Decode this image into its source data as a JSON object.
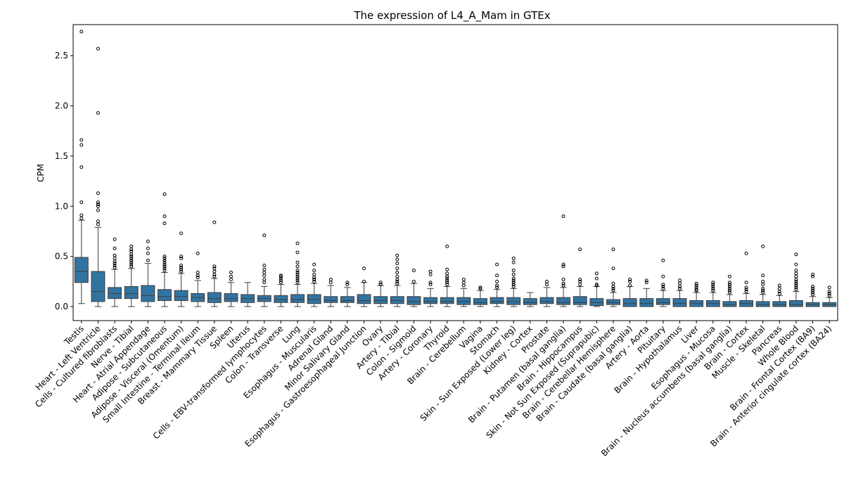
{
  "chart_data": {
    "type": "box",
    "title": "The expression of L4_A_Mam in GTEx",
    "xlabel": "",
    "ylabel": "CPM",
    "ylim": [
      -0.14,
      2.81
    ],
    "yticks": [
      0.0,
      0.5,
      1.0,
      1.5,
      2.0,
      2.5
    ],
    "ytick_labels": [
      "0.0",
      "0.5",
      "1.0",
      "1.5",
      "2.0",
      "2.5"
    ],
    "grid": false,
    "box_color": "#3274a1",
    "categories": [
      "Testis",
      "Heart - Left Ventricle",
      "Cells - Cultured fibroblasts",
      "Nerve - Tibial",
      "Heart - Atrial Appendage",
      "Adipose - Subcutaneous",
      "Adipose - Visceral (Omentum)",
      "Small Intestine - Terminal Ileum",
      "Breast - Mammary Tissue",
      "Spleen",
      "Uterus",
      "Cells - EBV-transformed lymphocytes",
      "Colon - Transverse",
      "Lung",
      "Esophagus - Muscularis",
      "Adrenal Gland",
      "Minor Salivary Gland",
      "Esophagus - Gastroesophageal Junction",
      "Ovary",
      "Artery - Tibial",
      "Colon - Sigmoid",
      "Artery - Coronary",
      "Thyroid",
      "Brain - Cerebellum",
      "Vagina",
      "Stomach",
      "Skin - Sun Exposed (Lower leg)",
      "Kidney - Cortex",
      "Prostate",
      "Brain - Putamen (basal ganglia)",
      "Brain - Hippocampus",
      "Skin - Not Sun Exposed (Suprapubic)",
      "Brain - Cerebellar Hemisphere",
      "Brain - Caudate (basal ganglia)",
      "Artery - Aorta",
      "Pituitary",
      "Brain - Hypothalamus",
      "Liver",
      "Esophagus - Mucosa",
      "Brain - Nucleus accumbens (basal ganglia)",
      "Brain - Cortex",
      "Muscle - Skeletal",
      "Pancreas",
      "Whole Blood",
      "Brain - Frontal Cortex (BA9)",
      "Brain - Anterior cingulate cortex (BA24)"
    ],
    "boxes": [
      {
        "whislo": 0.03,
        "q1": 0.24,
        "med": 0.35,
        "q3": 0.49,
        "whishi": 0.86,
        "fliers": [
          0.88,
          0.91,
          1.04,
          1.39,
          1.61,
          1.66,
          2.74
        ]
      },
      {
        "whislo": 0.0,
        "q1": 0.05,
        "med": 0.15,
        "q3": 0.35,
        "whishi": 0.79,
        "fliers": [
          0.82,
          0.85,
          0.96,
          1.0,
          1.02,
          1.04,
          1.13,
          1.93,
          2.57
        ]
      },
      {
        "whislo": 0.0,
        "q1": 0.08,
        "med": 0.13,
        "q3": 0.19,
        "whishi": 0.37,
        "fliers": [
          0.39,
          0.41,
          0.43,
          0.45,
          0.48,
          0.51,
          0.58,
          0.67
        ]
      },
      {
        "whislo": 0.0,
        "q1": 0.08,
        "med": 0.13,
        "q3": 0.2,
        "whishi": 0.38,
        "fliers": [
          0.4,
          0.42,
          0.44,
          0.46,
          0.48,
          0.5,
          0.52,
          0.55,
          0.57,
          0.6
        ]
      },
      {
        "whislo": 0.0,
        "q1": 0.05,
        "med": 0.11,
        "q3": 0.21,
        "whishi": 0.43,
        "fliers": [
          0.46,
          0.53,
          0.58,
          0.65
        ]
      },
      {
        "whislo": 0.0,
        "q1": 0.06,
        "med": 0.1,
        "q3": 0.17,
        "whishi": 0.34,
        "fliers": [
          0.36,
          0.38,
          0.4,
          0.42,
          0.44,
          0.46,
          0.48,
          0.5,
          0.83,
          0.9,
          1.12
        ]
      },
      {
        "whislo": 0.0,
        "q1": 0.06,
        "med": 0.1,
        "q3": 0.16,
        "whishi": 0.33,
        "fliers": [
          0.35,
          0.37,
          0.39,
          0.41,
          0.48,
          0.5,
          0.73
        ]
      },
      {
        "whislo": 0.0,
        "q1": 0.05,
        "med": 0.09,
        "q3": 0.13,
        "whishi": 0.26,
        "fliers": [
          0.29,
          0.31,
          0.34,
          0.53
        ]
      },
      {
        "whislo": 0.0,
        "q1": 0.04,
        "med": 0.08,
        "q3": 0.14,
        "whishi": 0.28,
        "fliers": [
          0.3,
          0.32,
          0.35,
          0.38,
          0.4,
          0.84
        ]
      },
      {
        "whislo": 0.0,
        "q1": 0.05,
        "med": 0.08,
        "q3": 0.13,
        "whishi": 0.24,
        "fliers": [
          0.27,
          0.3,
          0.34
        ]
      },
      {
        "whislo": 0.0,
        "q1": 0.04,
        "med": 0.08,
        "q3": 0.12,
        "whishi": 0.24,
        "fliers": []
      },
      {
        "whislo": 0.0,
        "q1": 0.05,
        "med": 0.08,
        "q3": 0.11,
        "whishi": 0.2,
        "fliers": [
          0.24,
          0.27,
          0.31,
          0.34,
          0.37,
          0.41,
          0.71
        ]
      },
      {
        "whislo": 0.0,
        "q1": 0.04,
        "med": 0.07,
        "q3": 0.11,
        "whishi": 0.22,
        "fliers": [
          0.24,
          0.26,
          0.28,
          0.3,
          0.31
        ]
      },
      {
        "whislo": 0.0,
        "q1": 0.04,
        "med": 0.07,
        "q3": 0.12,
        "whishi": 0.22,
        "fliers": [
          0.24,
          0.26,
          0.28,
          0.3,
          0.32,
          0.34,
          0.36,
          0.4,
          0.44,
          0.54,
          0.63
        ]
      },
      {
        "whislo": 0.0,
        "q1": 0.03,
        "med": 0.07,
        "q3": 0.12,
        "whishi": 0.23,
        "fliers": [
          0.25,
          0.27,
          0.29,
          0.32,
          0.36,
          0.42
        ]
      },
      {
        "whislo": 0.0,
        "q1": 0.04,
        "med": 0.06,
        "q3": 0.1,
        "whishi": 0.21,
        "fliers": [
          0.24,
          0.27
        ]
      },
      {
        "whislo": 0.0,
        "q1": 0.04,
        "med": 0.06,
        "q3": 0.1,
        "whishi": 0.19,
        "fliers": [
          0.22,
          0.24
        ]
      },
      {
        "whislo": 0.0,
        "q1": 0.03,
        "med": 0.06,
        "q3": 0.12,
        "whishi": 0.24,
        "fliers": [
          0.25,
          0.38
        ]
      },
      {
        "whislo": 0.0,
        "q1": 0.03,
        "med": 0.06,
        "q3": 0.1,
        "whishi": 0.21,
        "fliers": [
          0.22,
          0.24
        ]
      },
      {
        "whislo": 0.0,
        "q1": 0.03,
        "med": 0.06,
        "q3": 0.1,
        "whishi": 0.21,
        "fliers": [
          0.23,
          0.25,
          0.27,
          0.3,
          0.34,
          0.38,
          0.43,
          0.47,
          0.51
        ]
      },
      {
        "whislo": 0.0,
        "q1": 0.02,
        "med": 0.05,
        "q3": 0.1,
        "whishi": 0.23,
        "fliers": [
          0.25,
          0.36
        ]
      },
      {
        "whislo": 0.0,
        "q1": 0.03,
        "med": 0.05,
        "q3": 0.09,
        "whishi": 0.18,
        "fliers": [
          0.22,
          0.24,
          0.32,
          0.35
        ]
      },
      {
        "whislo": 0.0,
        "q1": 0.03,
        "med": 0.05,
        "q3": 0.09,
        "whishi": 0.2,
        "fliers": [
          0.22,
          0.24,
          0.26,
          0.28,
          0.3,
          0.33,
          0.37,
          0.6
        ]
      },
      {
        "whislo": 0.0,
        "q1": 0.02,
        "med": 0.05,
        "q3": 0.09,
        "whishi": 0.18,
        "fliers": [
          0.21,
          0.24,
          0.27
        ]
      },
      {
        "whislo": 0.0,
        "q1": 0.02,
        "med": 0.04,
        "q3": 0.08,
        "whishi": 0.16,
        "fliers": [
          0.18,
          0.19
        ]
      },
      {
        "whislo": 0.0,
        "q1": 0.03,
        "med": 0.05,
        "q3": 0.09,
        "whishi": 0.17,
        "fliers": [
          0.19,
          0.21,
          0.25,
          0.31,
          0.42
        ]
      },
      {
        "whislo": 0.0,
        "q1": 0.02,
        "med": 0.05,
        "q3": 0.09,
        "whishi": 0.18,
        "fliers": [
          0.2,
          0.22,
          0.24,
          0.26,
          0.28,
          0.32,
          0.36,
          0.44,
          0.48
        ]
      },
      {
        "whislo": 0.0,
        "q1": 0.02,
        "med": 0.04,
        "q3": 0.08,
        "whishi": 0.14,
        "fliers": []
      },
      {
        "whislo": 0.0,
        "q1": 0.03,
        "med": 0.05,
        "q3": 0.09,
        "whishi": 0.19,
        "fliers": [
          0.22,
          0.25
        ]
      },
      {
        "whislo": 0.0,
        "q1": 0.02,
        "med": 0.04,
        "q3": 0.09,
        "whishi": 0.19,
        "fliers": [
          0.21,
          0.23,
          0.27,
          0.4,
          0.42,
          0.9
        ]
      },
      {
        "whislo": 0.0,
        "q1": 0.02,
        "med": 0.04,
        "q3": 0.1,
        "whishi": 0.2,
        "fliers": [
          0.22,
          0.25,
          0.27,
          0.57
        ]
      },
      {
        "whislo": 0.0,
        "q1": 0.01,
        "med": 0.04,
        "q3": 0.08,
        "whishi": 0.2,
        "fliers": [
          0.21,
          0.22,
          0.28,
          0.33
        ]
      },
      {
        "whislo": 0.0,
        "q1": 0.02,
        "med": 0.04,
        "q3": 0.07,
        "whishi": 0.14,
        "fliers": [
          0.16,
          0.18,
          0.2,
          0.23,
          0.38,
          0.57
        ]
      },
      {
        "whislo": 0.0,
        "q1": 0.0,
        "med": 0.03,
        "q3": 0.08,
        "whishi": 0.2,
        "fliers": [
          0.21,
          0.25,
          0.27
        ]
      },
      {
        "whislo": 0.0,
        "q1": 0.0,
        "med": 0.03,
        "q3": 0.08,
        "whishi": 0.18,
        "fliers": [
          0.24,
          0.26
        ]
      },
      {
        "whislo": 0.0,
        "q1": 0.02,
        "med": 0.04,
        "q3": 0.08,
        "whishi": 0.16,
        "fliers": [
          0.18,
          0.2,
          0.22,
          0.3,
          0.46
        ]
      },
      {
        "whislo": 0.0,
        "q1": 0.0,
        "med": 0.03,
        "q3": 0.08,
        "whishi": 0.16,
        "fliers": [
          0.18,
          0.2,
          0.23,
          0.26
        ]
      },
      {
        "whislo": 0.0,
        "q1": 0.0,
        "med": 0.03,
        "q3": 0.06,
        "whishi": 0.14,
        "fliers": [
          0.16,
          0.17,
          0.19,
          0.21,
          0.23
        ]
      },
      {
        "whislo": 0.0,
        "q1": 0.0,
        "med": 0.03,
        "q3": 0.06,
        "whishi": 0.14,
        "fliers": [
          0.16,
          0.18,
          0.2,
          0.22,
          0.24
        ]
      },
      {
        "whislo": 0.0,
        "q1": 0.0,
        "med": 0.02,
        "q3": 0.05,
        "whishi": 0.12,
        "fliers": [
          0.14,
          0.16,
          0.18,
          0.2,
          0.22,
          0.24,
          0.3
        ]
      },
      {
        "whislo": 0.0,
        "q1": 0.0,
        "med": 0.03,
        "q3": 0.06,
        "whishi": 0.13,
        "fliers": [
          0.15,
          0.17,
          0.19,
          0.24,
          0.53
        ]
      },
      {
        "whislo": 0.0,
        "q1": 0.0,
        "med": 0.02,
        "q3": 0.05,
        "whishi": 0.12,
        "fliers": [
          0.14,
          0.16,
          0.18,
          0.22,
          0.25,
          0.31,
          0.6
        ]
      },
      {
        "whislo": 0.0,
        "q1": 0.0,
        "med": 0.02,
        "q3": 0.05,
        "whishi": 0.11,
        "fliers": [
          0.13,
          0.15,
          0.18,
          0.21
        ]
      },
      {
        "whislo": 0.0,
        "q1": 0.0,
        "med": 0.02,
        "q3": 0.06,
        "whishi": 0.15,
        "fliers": [
          0.17,
          0.19,
          0.21,
          0.23,
          0.25,
          0.27,
          0.3,
          0.33,
          0.36,
          0.42,
          0.52
        ]
      },
      {
        "whislo": 0.0,
        "q1": 0.0,
        "med": 0.02,
        "q3": 0.04,
        "whishi": 0.1,
        "fliers": [
          0.12,
          0.14,
          0.16,
          0.18,
          0.2,
          0.3,
          0.32
        ]
      },
      {
        "whislo": 0.0,
        "q1": 0.0,
        "med": 0.02,
        "q3": 0.04,
        "whishi": 0.09,
        "fliers": [
          0.11,
          0.13,
          0.15,
          0.19
        ]
      }
    ]
  }
}
